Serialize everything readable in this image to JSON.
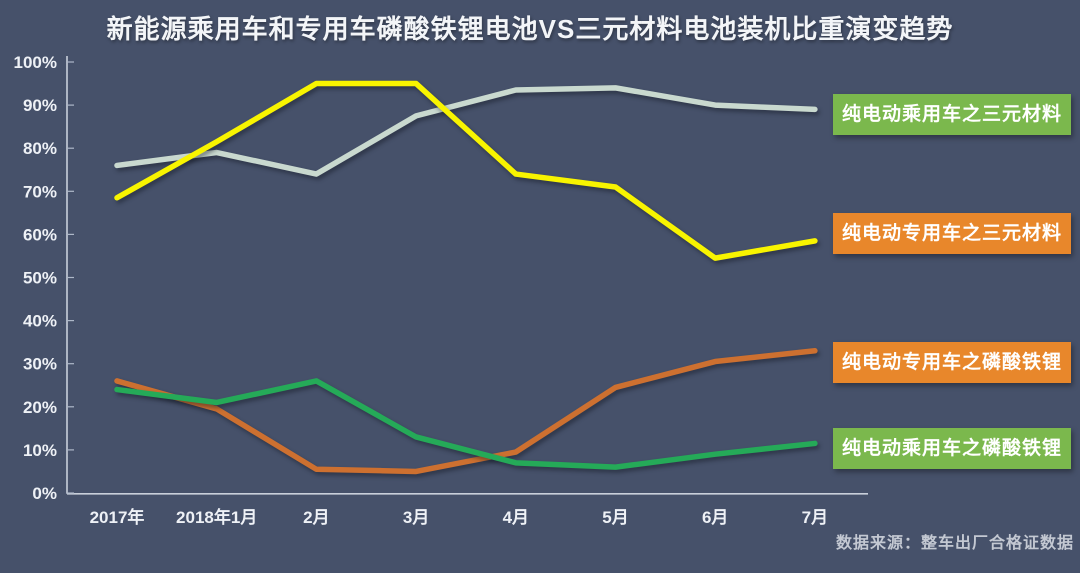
{
  "title": "新能源乘用车和专用车磷酸铁锂电池VS三元材料电池装机比重演变趋势",
  "source_note": "数据来源：整车出厂合格证数据",
  "colors": {
    "background": "#46516a",
    "title_text": "#f3f5f8",
    "axis_text": "#eef1f6",
    "green_badge": "#7bb84d",
    "orange_badge": "#e8872b"
  },
  "chart_data": {
    "type": "line",
    "categories": [
      "2017年",
      "2018年1月",
      "2月",
      "3月",
      "4月",
      "5月",
      "6月",
      "7月"
    ],
    "series": [
      {
        "name": "纯电动乘用车之三元材料",
        "color": "#c9d9cf",
        "label_bg": "#7bb84d",
        "values": [
          76,
          79,
          74,
          87.5,
          93.5,
          94,
          90,
          89
        ]
      },
      {
        "name": "纯电动专用车之三元材料",
        "color": "#f8f400",
        "label_bg": "#e8872b",
        "values": [
          68.5,
          81.5,
          95,
          95,
          74,
          71,
          54.5,
          58.5
        ]
      },
      {
        "name": "纯电动专用车之磷酸铁锂",
        "color": "#cd7030",
        "label_bg": "#e8872b",
        "values": [
          26,
          19.5,
          5.5,
          5,
          9.5,
          24.5,
          30.5,
          33
        ]
      },
      {
        "name": "纯电动乘用车之磷酸铁锂",
        "color": "#25aa58",
        "label_bg": "#7bb84d",
        "values": [
          24,
          21,
          26,
          13,
          7,
          6,
          9,
          11.5
        ]
      }
    ],
    "y_ticks": [
      "0%",
      "10%",
      "20%",
      "30%",
      "40%",
      "50%",
      "60%",
      "70%",
      "80%",
      "90%",
      "100%"
    ],
    "ylim": [
      0,
      100
    ],
    "xlabel": "",
    "ylabel": "",
    "grid": false,
    "legend_position": "right-callouts"
  }
}
